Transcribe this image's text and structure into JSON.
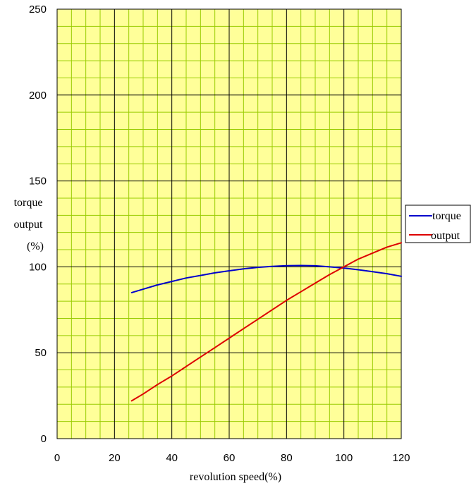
{
  "chart_data": {
    "type": "line",
    "title": "",
    "xlabel": "revolution speed(%)",
    "ylabel_lines": [
      "torque",
      "output",
      "(%)"
    ],
    "xlim": [
      0,
      120
    ],
    "ylim": [
      0,
      250
    ],
    "x_ticks": [
      0,
      20,
      40,
      60,
      80,
      100,
      120
    ],
    "y_ticks": [
      0,
      50,
      100,
      150,
      200,
      250
    ],
    "x_tick_labels": [
      "0",
      "20",
      "40",
      "60",
      "80",
      "100",
      "120"
    ],
    "y_tick_labels": [
      "0",
      "50",
      "100",
      "150",
      "200",
      "250"
    ],
    "grid": true,
    "legend_position": "right",
    "colors": {
      "plot_background": "#ffff99",
      "minor_grid": "#99cc00",
      "major_grid": "#000000",
      "torque": "#0000cc",
      "output": "#dd0000"
    },
    "series": [
      {
        "name": "torque",
        "color": "#0000cc",
        "x": [
          26,
          30,
          35,
          40,
          45,
          50,
          55,
          60,
          65,
          70,
          75,
          80,
          85,
          90,
          95,
          100,
          105,
          110,
          115,
          120
        ],
        "y": [
          85,
          87,
          89.5,
          91.5,
          93.5,
          95,
          96.5,
          97.7,
          98.8,
          99.7,
          100.3,
          100.7,
          100.8,
          100.6,
          100,
          99.3,
          98.3,
          97.2,
          96,
          94.5
        ]
      },
      {
        "name": "output",
        "color": "#dd0000",
        "x": [
          26,
          30,
          35,
          40,
          45,
          50,
          55,
          60,
          65,
          70,
          75,
          80,
          85,
          90,
          95,
          100,
          105,
          110,
          115,
          120
        ],
        "y": [
          22,
          26,
          31.5,
          36.5,
          42,
          47.5,
          53,
          58.5,
          64,
          69.5,
          75,
          80.5,
          85.5,
          90.5,
          95.5,
          100,
          104.5,
          108,
          111.5,
          114
        ]
      }
    ]
  }
}
